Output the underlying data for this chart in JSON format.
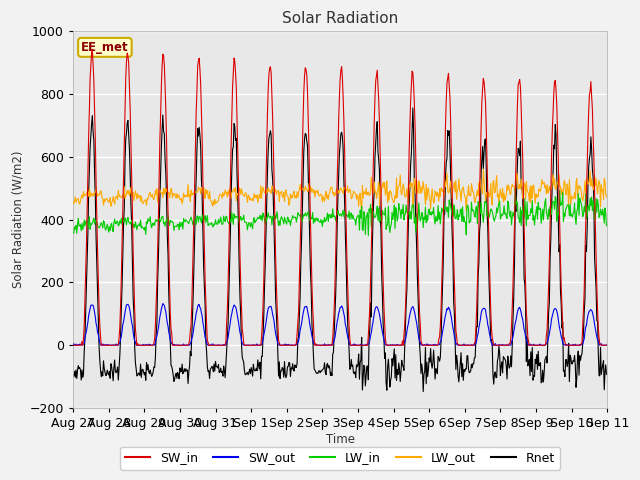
{
  "title": "Solar Radiation",
  "ylabel": "Solar Radiation (W/m2)",
  "xlabel": "Time",
  "annotation": "EE_met",
  "ylim": [
    -200,
    1000
  ],
  "plot_bg": "#e8e8e8",
  "fig_bg": "#f2f2f2",
  "grid_color": "white",
  "series": {
    "SW_in": {
      "color": "#dd0000",
      "lw": 0.8
    },
    "SW_out": {
      "color": "#0000ee",
      "lw": 0.8
    },
    "LW_in": {
      "color": "#00cc00",
      "lw": 0.8
    },
    "LW_out": {
      "color": "#ffaa00",
      "lw": 0.8
    },
    "Rnet": {
      "color": "#000000",
      "lw": 0.8
    }
  },
  "x_tick_labels": [
    "Aug 27",
    "Aug 28",
    "Aug 29",
    "Aug 30",
    "Aug 31",
    "Sep 1",
    "Sep 2",
    "Sep 3",
    "Sep 4",
    "Sep 5",
    "Sep 6",
    "Sep 7",
    "Sep 8",
    "Sep 9",
    "Sep 10",
    "Sep 11"
  ],
  "n_days": 15,
  "dt_minutes": 30
}
